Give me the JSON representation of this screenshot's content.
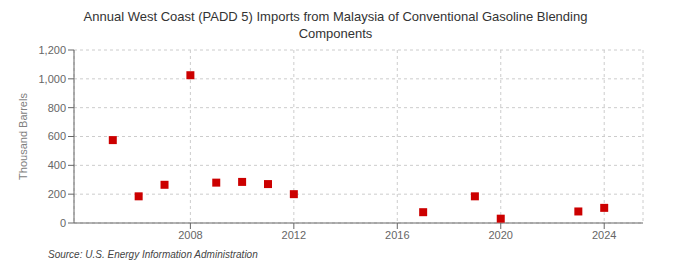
{
  "chart_data": {
    "type": "scatter",
    "title": "Annual West Coast (PADD 5) Imports from Malaysia of Conventional Gasoline Blending\nComponents",
    "ylabel": "Thousand Barrels",
    "annotations": [
      "Source: U.S. Energy Information Administration"
    ],
    "x": [
      2005,
      2006,
      2007,
      2008,
      2009,
      2010,
      2011,
      2012,
      2017,
      2019,
      2020,
      2023,
      2024
    ],
    "values": [
      575,
      185,
      265,
      1025,
      280,
      285,
      270,
      200,
      75,
      185,
      30,
      80,
      105
    ],
    "color": "#cc0000",
    "marker": "square",
    "xlim": [
      2003.5,
      2025.5
    ],
    "xticks": [
      2008,
      2012,
      2016,
      2020,
      2024
    ],
    "ylim": [
      0,
      1200
    ],
    "yticks": [
      0,
      200,
      400,
      {
        "value": 600,
        "label": "600"
      },
      800,
      {
        "value": 1000,
        "label": "1,000"
      },
      {
        "value": 1200,
        "label": "1,200"
      }
    ],
    "grid": true
  }
}
